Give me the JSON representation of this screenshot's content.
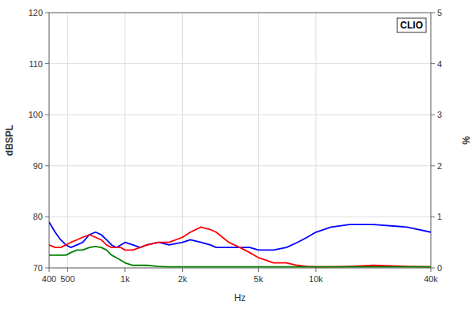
{
  "chart_data": {
    "type": "line",
    "log": "x",
    "grid": true,
    "x_label": "Hz",
    "y_label": "dBSPL",
    "y2_label": "%",
    "annotations": [
      {
        "text": "CLIO"
      }
    ],
    "xlim": [
      400,
      40000
    ],
    "xticks": [
      400,
      500,
      {
        "value": 1000,
        "label": "1k"
      },
      {
        "value": 2000,
        "label": "2k"
      },
      {
        "value": 5000,
        "label": "5k"
      },
      {
        "value": 10000,
        "label": "10k"
      },
      {
        "value": 40000,
        "label": "40k"
      }
    ],
    "ylim": [
      70,
      120
    ],
    "yticks": [
      70,
      80,
      90,
      100,
      110,
      120
    ],
    "y2lim": [
      0,
      5
    ],
    "y2ticks": [
      0,
      1,
      2,
      3,
      4,
      5
    ],
    "x": [
      400,
      430,
      460,
      490,
      520,
      560,
      600,
      650,
      700,
      750,
      800,
      850,
      900,
      950,
      1000,
      1100,
      1200,
      1300,
      1500,
      1700,
      2000,
      2200,
      2500,
      2800,
      3000,
      3500,
      4000,
      4500,
      5000,
      5500,
      6000,
      7000,
      8000,
      9000,
      10000,
      12000,
      15000,
      20000,
      30000,
      40000
    ],
    "series": [
      {
        "color": "#0000ff",
        "values": [
          79,
          77,
          75.5,
          74.5,
          74,
          74.5,
          75,
          76.5,
          77,
          76.5,
          75.5,
          74.5,
          74,
          74.5,
          75,
          74.5,
          74,
          74.5,
          75,
          74.5,
          75,
          75.5,
          75,
          74.5,
          74,
          74,
          74,
          74,
          73.5,
          73.5,
          73.5,
          74,
          75,
          76,
          77,
          78,
          78.5,
          78.5,
          78,
          77
        ]
      },
      {
        "color": "#ff0000",
        "values": [
          74.5,
          74,
          74,
          74.5,
          75,
          75.5,
          76,
          76.5,
          76,
          75.5,
          74.5,
          74,
          74,
          74,
          73.5,
          73.5,
          74,
          74.5,
          75,
          75,
          76,
          77,
          78,
          77.5,
          77,
          75,
          74,
          73,
          72,
          71.5,
          71,
          71,
          70.5,
          70.3,
          70.2,
          70.2,
          70.3,
          70.5,
          70.3,
          70.2
        ]
      },
      {
        "color": "#008000",
        "values": [
          72.5,
          72.5,
          72.5,
          72.5,
          73,
          73.5,
          73.5,
          74,
          74.2,
          74,
          73.5,
          72.5,
          72,
          71.5,
          71,
          70.5,
          70.5,
          70.5,
          70.3,
          70.2,
          70.2,
          70.2,
          70.2,
          70.2,
          70.2,
          70.2,
          70.2,
          70.2,
          70.2,
          70.2,
          70.2,
          70.2,
          70.2,
          70.2,
          70.2,
          70.2,
          70.2,
          70.2,
          70.2,
          70.2
        ]
      }
    ]
  }
}
